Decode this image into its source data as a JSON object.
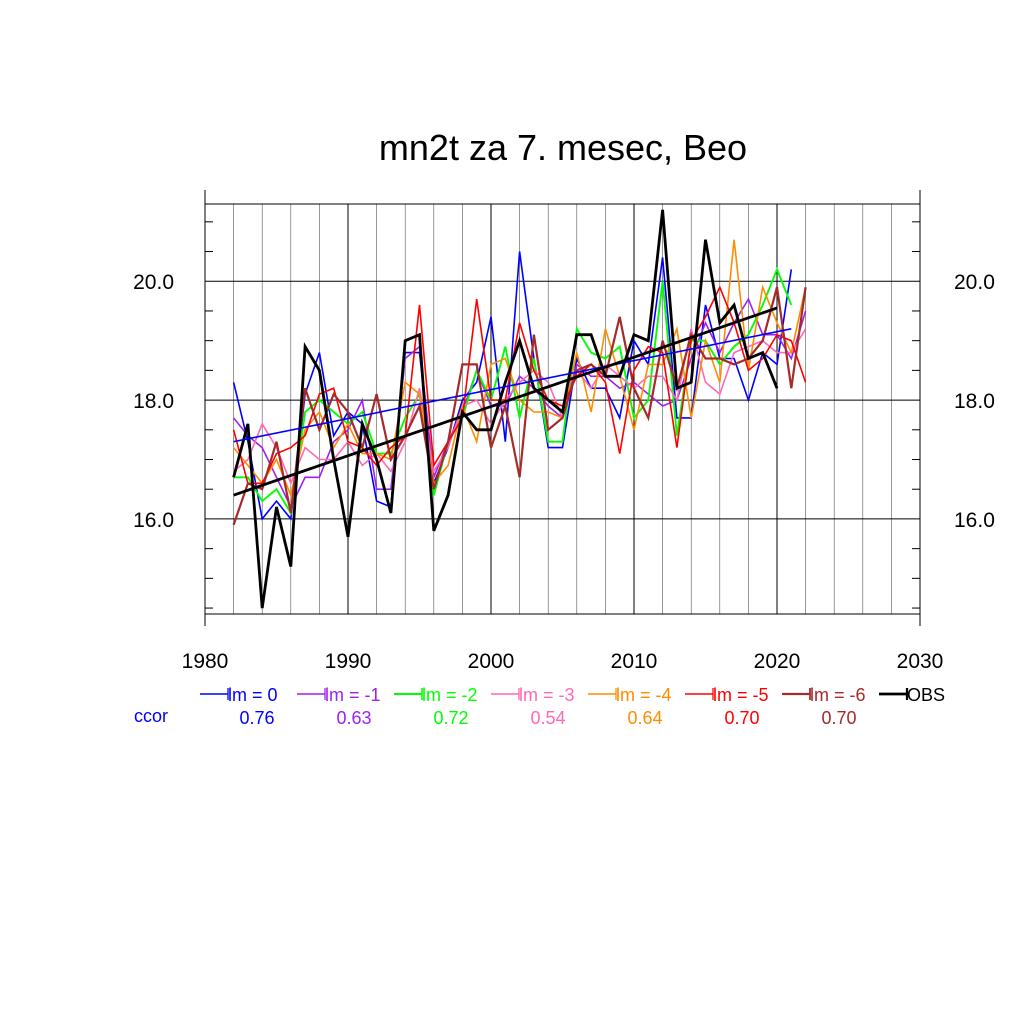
{
  "chart_data": {
    "type": "line",
    "title": "mn2t za 7. mesec, Beo",
    "xlim": [
      1980,
      2030
    ],
    "ylim": [
      14.4,
      21.3
    ],
    "x_ticks": [
      1980,
      1990,
      2000,
      2010,
      2020,
      2030
    ],
    "y_ticks": [
      16.0,
      18.0,
      20.0
    ],
    "x_tick_labels": [
      "1980",
      "1990",
      "2000",
      "2010",
      "2020",
      "2030"
    ],
    "y_tick_labels": [
      "16.0",
      "18.0",
      "20.0"
    ],
    "grid": true,
    "legend_position": "bottom",
    "ccor_label": "ccor",
    "ccor_color": "#0000ff",
    "series": [
      {
        "name": "lm = 0",
        "ccor": "0.76",
        "color": "#0000ff",
        "width": 1.6,
        "start": 1982,
        "values": [
          18.3,
          17.3,
          16.0,
          16.3,
          16.0,
          18.1,
          18.8,
          17.4,
          17.8,
          17.6,
          16.3,
          16.2,
          18.8,
          18.8,
          16.6,
          17.2,
          18.0,
          18.3,
          19.4,
          17.3,
          20.5,
          18.7,
          17.2,
          17.2,
          18.7,
          18.2,
          18.2,
          17.7,
          19.0,
          18.6,
          20.4,
          17.7,
          17.7,
          19.6,
          18.7,
          18.7,
          18.0,
          18.8,
          18.6,
          20.2
        ]
      },
      {
        "name": "lm = -1",
        "ccor": "0.63",
        "color": "#a020f0",
        "width": 1.6,
        "start": 1982,
        "values": [
          17.7,
          17.4,
          17.2,
          16.7,
          16.2,
          16.7,
          16.7,
          17.3,
          17.5,
          18.0,
          16.5,
          16.5,
          18.7,
          18.9,
          16.7,
          17.3,
          17.8,
          18.5,
          17.9,
          17.9,
          18.4,
          18.2,
          17.9,
          17.7,
          18.6,
          18.4,
          18.4,
          18.2,
          18.3,
          18.1,
          17.9,
          18.0,
          18.7,
          19.3,
          18.8,
          19.3,
          19.7,
          19.1,
          19.1,
          18.7,
          19.5
        ]
      },
      {
        "name": "lm = -2",
        "ccor": "0.72",
        "color": "#00ff00",
        "width": 1.9,
        "start": 1982,
        "values": [
          16.7,
          16.7,
          16.3,
          16.5,
          16.1,
          17.8,
          18.0,
          17.8,
          17.6,
          17.8,
          17.1,
          17.1,
          17.7,
          18.1,
          16.4,
          17.3,
          17.7,
          18.5,
          18.0,
          18.9,
          17.7,
          18.7,
          17.3,
          17.3,
          19.2,
          18.8,
          18.7,
          18.9,
          17.7,
          18.0,
          20.0,
          17.4,
          19.0,
          19.0,
          18.6,
          18.9,
          19.1,
          19.6,
          20.2,
          19.6
        ]
      },
      {
        "name": "lm = -3",
        "ccor": "0.54",
        "color": "#ff69b4",
        "width": 1.6,
        "start": 1982,
        "values": [
          16.8,
          17.0,
          17.6,
          17.2,
          16.6,
          17.2,
          17.0,
          17.0,
          17.3,
          16.9,
          17.1,
          16.8,
          17.3,
          18.2,
          16.8,
          17.2,
          17.9,
          18.0,
          17.6,
          18.0,
          18.3,
          18.5,
          18.3,
          17.7,
          18.5,
          18.2,
          18.6,
          18.4,
          18.2,
          18.4,
          18.4,
          18.0,
          19.2,
          18.3,
          18.1,
          18.8,
          18.9,
          19.0,
          18.8,
          18.8,
          19.2
        ]
      },
      {
        "name": "lm = -4",
        "ccor": "0.64",
        "color": "#ff8c00",
        "width": 1.6,
        "start": 1982,
        "values": [
          17.2,
          16.9,
          16.6,
          17.0,
          16.4,
          17.5,
          17.8,
          17.2,
          17.6,
          17.1,
          17.1,
          17.0,
          18.3,
          18.1,
          16.6,
          16.9,
          17.9,
          17.3,
          18.6,
          18.7,
          18.0,
          17.8,
          17.8,
          17.7,
          18.8,
          17.8,
          19.2,
          18.4,
          17.5,
          18.6,
          18.6,
          19.2,
          17.7,
          19.0,
          18.3,
          20.7,
          18.5,
          19.9,
          19.3,
          18.8,
          19.9
        ]
      },
      {
        "name": "lm = -5",
        "ccor": "0.70",
        "color": "#ff0000",
        "width": 1.6,
        "start": 1982,
        "values": [
          17.5,
          16.6,
          16.6,
          17.1,
          17.2,
          17.4,
          18.1,
          18.2,
          17.3,
          17.2,
          16.9,
          17.2,
          17.4,
          19.6,
          16.9,
          17.3,
          17.7,
          19.7,
          18.0,
          18.0,
          19.3,
          18.5,
          18.0,
          17.9,
          18.4,
          18.6,
          18.3,
          17.1,
          18.5,
          18.9,
          18.8,
          17.2,
          19.0,
          19.4,
          19.9,
          19.3,
          18.5,
          18.7,
          19.1,
          19.0,
          18.3
        ]
      },
      {
        "name": "lm = -6",
        "ccor": "0.70",
        "color": "#a52a2a",
        "width": 2.2,
        "start": 1982,
        "values": [
          15.9,
          16.6,
          16.5,
          17.3,
          16.1,
          18.2,
          17.5,
          18.1,
          17.8,
          17.2,
          18.1,
          17.0,
          17.4,
          17.9,
          16.5,
          17.3,
          18.6,
          18.6,
          17.2,
          17.9,
          16.7,
          19.1,
          17.5,
          17.7,
          18.5,
          18.6,
          18.4,
          19.4,
          18.2,
          17.7,
          19.0,
          18.2,
          19.1,
          18.7,
          18.7,
          18.6,
          18.7,
          19.0,
          19.9,
          18.2,
          19.9
        ]
      },
      {
        "name": "OBS",
        "ccor": "",
        "color": "#000000",
        "width": 2.8,
        "start": 1982,
        "values": [
          16.7,
          17.6,
          14.5,
          16.2,
          15.2,
          18.9,
          18.5,
          17.0,
          15.7,
          17.6,
          17.0,
          16.1,
          19.0,
          19.1,
          15.8,
          16.4,
          17.8,
          17.5,
          17.5,
          18.3,
          19.0,
          18.2,
          18.0,
          17.8,
          19.1,
          19.1,
          18.4,
          18.4,
          19.1,
          19.0,
          21.2,
          18.2,
          18.3,
          20.7,
          19.3,
          19.6,
          18.7,
          18.8,
          18.2
        ]
      }
    ],
    "trend_lines": [
      {
        "name": "trend-lm0",
        "color": "#0000ff",
        "width": 1.6,
        "x": [
          1982,
          2021
        ],
        "y": [
          17.3,
          19.2
        ]
      },
      {
        "name": "trend-obs",
        "color": "#000000",
        "width": 2.8,
        "x": [
          1982,
          2020
        ],
        "y": [
          16.4,
          19.55
        ]
      }
    ]
  }
}
